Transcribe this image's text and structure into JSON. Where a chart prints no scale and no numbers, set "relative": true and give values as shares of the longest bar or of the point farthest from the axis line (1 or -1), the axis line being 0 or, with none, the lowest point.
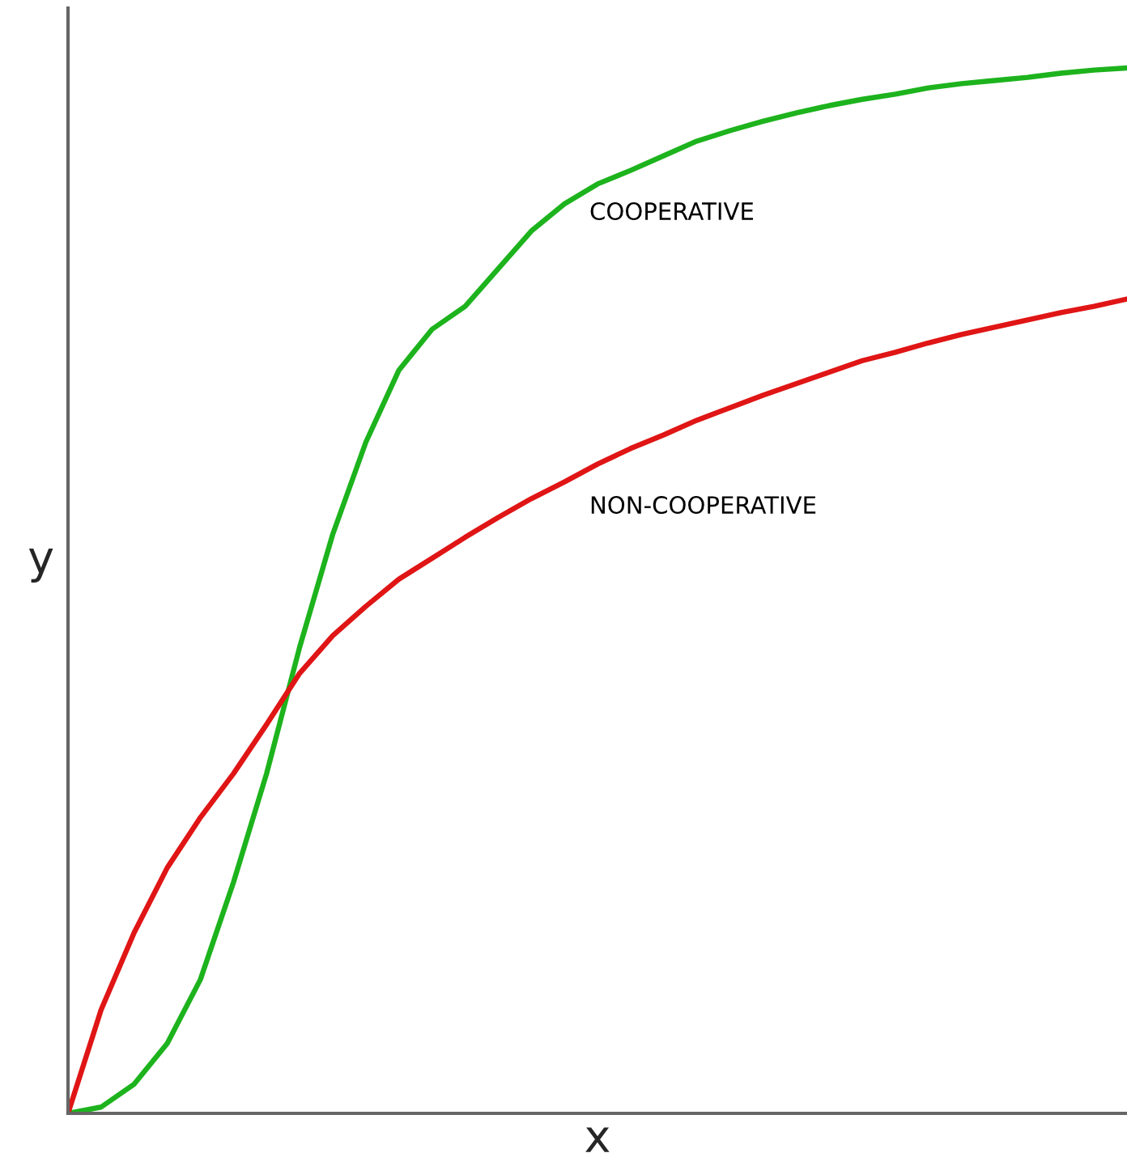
{
  "chart_data": {
    "type": "line",
    "relative": true,
    "xlabel": "x",
    "ylabel": "y",
    "categories": [
      null,
      null,
      null,
      null,
      null,
      null,
      null,
      null,
      null,
      null,
      null,
      null,
      null,
      null,
      null,
      null,
      null,
      null,
      null,
      null,
      null,
      null,
      null,
      null,
      null,
      null,
      null,
      null,
      null,
      null,
      null,
      null,
      null
    ],
    "series": [
      {
        "name": "COOPERATIVE",
        "color": "#1db31d",
        "values": [
          0,
          0.006,
          0.028,
          0.067,
          0.128,
          0.221,
          0.325,
          0.446,
          0.554,
          0.642,
          0.711,
          0.75,
          0.772,
          0.808,
          0.844,
          0.87,
          0.889,
          0.902,
          0.916,
          0.93,
          0.94,
          0.949,
          0.957,
          0.964,
          0.97,
          0.975,
          0.981,
          0.985,
          0.988,
          0.991,
          0.995,
          0.998,
          1
        ]
      },
      {
        "name": "NON-COOPERATIVE",
        "color": "#e01515",
        "values": [
          0,
          0.099,
          0.173,
          0.235,
          0.283,
          0.325,
          0.372,
          0.421,
          0.457,
          0.485,
          0.511,
          0.531,
          0.551,
          0.57,
          0.588,
          0.604,
          0.621,
          0.636,
          0.649,
          0.663,
          0.675,
          0.687,
          0.698,
          0.709,
          0.72,
          0.728,
          0.737,
          0.745,
          0.752,
          0.759,
          0.766,
          0.772,
          0.779
        ]
      }
    ],
    "legend": false,
    "marker": "none",
    "line_style": "solid"
  }
}
